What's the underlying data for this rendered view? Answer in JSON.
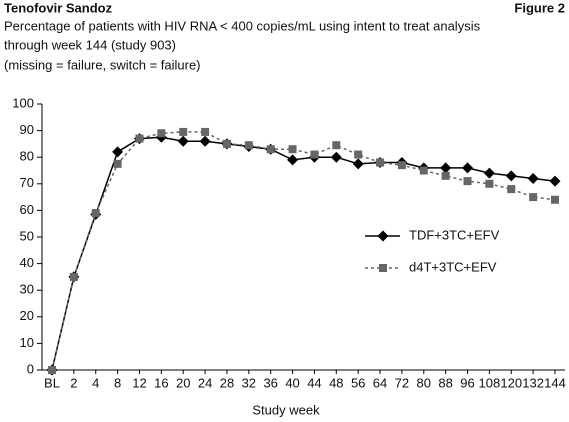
{
  "chart_data": {
    "type": "line",
    "header": "Tenofovir Sandoz",
    "figure_label": "Figure 2",
    "subtitle": [
      "Percentage of patients with HIV RNA < 400 copies/mL using intent to treat analysis",
      "through week 144 (study 903)",
      "(missing = failure, switch = failure)"
    ],
    "x_label": "Study week",
    "categories": [
      "BL",
      "2",
      "4",
      "8",
      "12",
      "16",
      "20",
      "24",
      "28",
      "32",
      "36",
      "40",
      "44",
      "48",
      "56",
      "64",
      "72",
      "80",
      "88",
      "96",
      "108",
      "120",
      "132",
      "144"
    ],
    "series": [
      {
        "name": "TDF+3TC+EFV",
        "color": "#000000",
        "line_style": "solid",
        "marker": "diamond",
        "values": [
          0,
          35,
          58.5,
          82,
          87,
          87.5,
          86,
          86,
          85,
          84,
          83,
          79,
          80,
          80,
          77.5,
          78,
          78,
          76,
          76,
          76,
          74,
          73,
          72,
          71
        ]
      },
      {
        "name": "d4T+3TC+EFV",
        "color": "#666666",
        "line_style": "dashed",
        "marker": "square",
        "values": [
          0,
          35,
          59,
          77.5,
          87,
          89,
          89.5,
          89.5,
          85,
          84.5,
          83,
          83,
          81,
          84.5,
          81,
          78,
          77,
          75,
          73,
          71,
          70,
          68,
          65,
          64
        ]
      }
    ],
    "ylim": [
      0,
      100
    ],
    "yticks": [
      0,
      10,
      20,
      30,
      40,
      50,
      60,
      70,
      80,
      90,
      100
    ],
    "legend": "center right",
    "grid": false
  }
}
